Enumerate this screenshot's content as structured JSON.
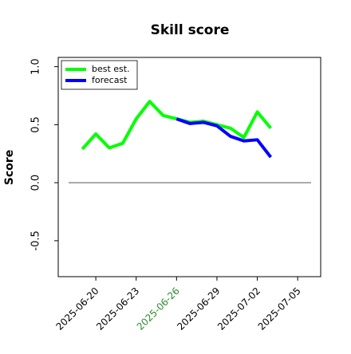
{
  "chart_data": {
    "type": "line",
    "title": "Skill score",
    "ylabel": "Score",
    "xlim": [
      "2025-06-17T05:00",
      "2025-07-06T17:00"
    ],
    "xticks": [
      "2025-06-20",
      "2025-06-23",
      "2025-06-26",
      "2025-06-29",
      "2025-07-02",
      "2025-07-05"
    ],
    "highlight_xtick": "2025-06-26",
    "highlight_color": "#2e8b2e",
    "ylim": [
      -0.81,
      1.08
    ],
    "yticks": [
      {
        "value": -0.5,
        "label": "-0.5"
      },
      {
        "value": 0,
        "label": "0.0"
      },
      {
        "value": 0.5,
        "label": "0.5"
      },
      {
        "value": 1,
        "label": "1.0"
      }
    ],
    "hline": 0,
    "legend": "upper left",
    "series": [
      {
        "name": "best est.",
        "color": "#00ff00",
        "x": [
          "2025-06-19",
          "2025-06-20",
          "2025-06-21",
          "2025-06-22",
          "2025-06-23",
          "2025-06-24",
          "2025-06-25",
          "2025-06-26",
          "2025-06-27",
          "2025-06-28",
          "2025-06-29",
          "2025-06-30",
          "2025-07-01",
          "2025-07-02",
          "2025-07-03"
        ],
        "values": [
          0.29,
          0.42,
          0.3,
          0.34,
          0.55,
          0.7,
          0.58,
          0.55,
          0.52,
          0.53,
          0.5,
          0.47,
          0.39,
          0.61,
          0.47
        ]
      },
      {
        "name": "forecast",
        "color": "#0000ff",
        "x": [
          "2025-06-26",
          "2025-06-27",
          "2025-06-28",
          "2025-06-29",
          "2025-06-30",
          "2025-07-01",
          "2025-07-02",
          "2025-07-03"
        ],
        "values": [
          0.55,
          0.51,
          0.52,
          0.49,
          0.4,
          0.36,
          0.37,
          0.22
        ]
      }
    ]
  }
}
